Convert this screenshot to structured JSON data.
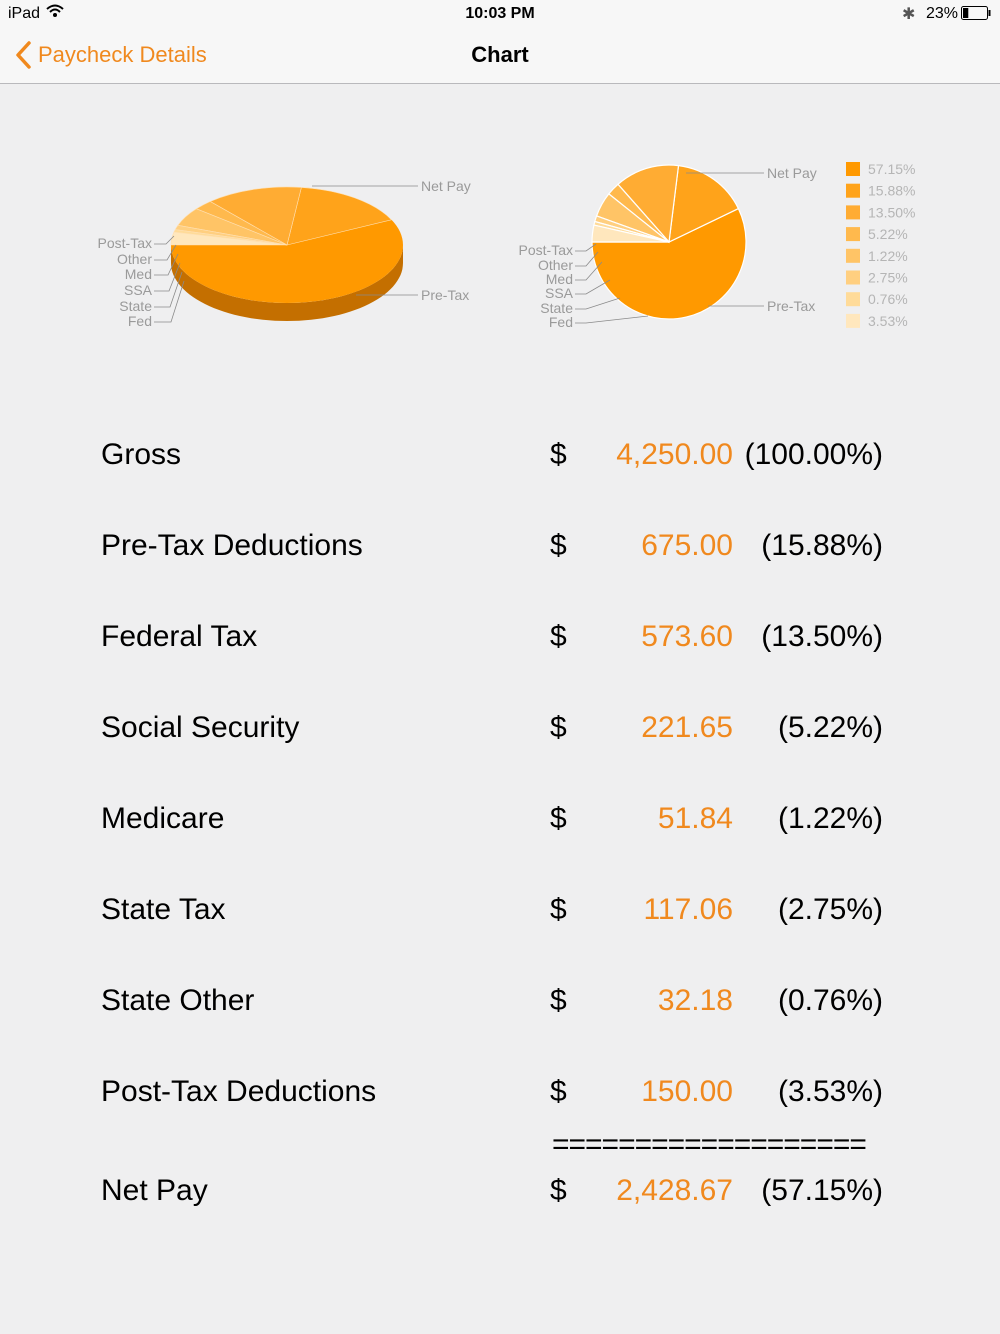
{
  "status_bar": {
    "device": "iPad",
    "time": "10:03 PM",
    "battery": "23%",
    "battery_level": 0.23
  },
  "nav": {
    "back_label": "Paycheck Details",
    "title": "Chart"
  },
  "colors": {
    "accent": "#f0891e",
    "net_pay": "#ff9900"
  },
  "chart_data": [
    {
      "type": "pie",
      "style": "3d",
      "labels": [
        "Net Pay",
        "Pre-Tax",
        "Fed",
        "State",
        "SSA",
        "Med",
        "Other",
        "Post-Tax"
      ],
      "values": [
        57.15,
        15.88,
        13.5,
        2.75,
        5.22,
        1.22,
        0.76,
        3.53
      ]
    },
    {
      "type": "pie",
      "style": "2d",
      "labels": [
        "Net Pay",
        "Pre-Tax",
        "Fed",
        "State",
        "SSA",
        "Med",
        "Other",
        "Post-Tax"
      ],
      "values": [
        57.15,
        15.88,
        13.5,
        2.75,
        5.22,
        1.22,
        0.76,
        3.53
      ],
      "legend": [
        "57.15%",
        "15.88%",
        "13.50%",
        "5.22%",
        "1.22%",
        "2.75%",
        "0.76%",
        "3.53%"
      ],
      "legend_colors": [
        "#ff9900",
        "#ffa31a",
        "#ffac33",
        "#ffb94d",
        "#ffc466",
        "#ffcf80",
        "#ffdb99",
        "#ffe7bd"
      ]
    }
  ],
  "table": {
    "currency": "$",
    "separator": "===================",
    "rows": [
      {
        "label": "Gross",
        "amount": "4,250.00",
        "pct": "(100.00%)"
      },
      {
        "label": "Pre-Tax Deductions",
        "amount": "675.00",
        "pct": "(15.88%)"
      },
      {
        "label": "Federal Tax",
        "amount": "573.60",
        "pct": "(13.50%)"
      },
      {
        "label": "Social Security",
        "amount": "221.65",
        "pct": "(5.22%)"
      },
      {
        "label": "Medicare",
        "amount": "51.84",
        "pct": "(1.22%)"
      },
      {
        "label": "State Tax",
        "amount": "117.06",
        "pct": "(2.75%)"
      },
      {
        "label": "State Other",
        "amount": "32.18",
        "pct": "(0.76%)"
      },
      {
        "label": "Post-Tax Deductions",
        "amount": "150.00",
        "pct": "(3.53%)"
      }
    ],
    "total": {
      "label": "Net Pay",
      "amount": "2,428.67",
      "pct": "(57.15%)"
    }
  }
}
